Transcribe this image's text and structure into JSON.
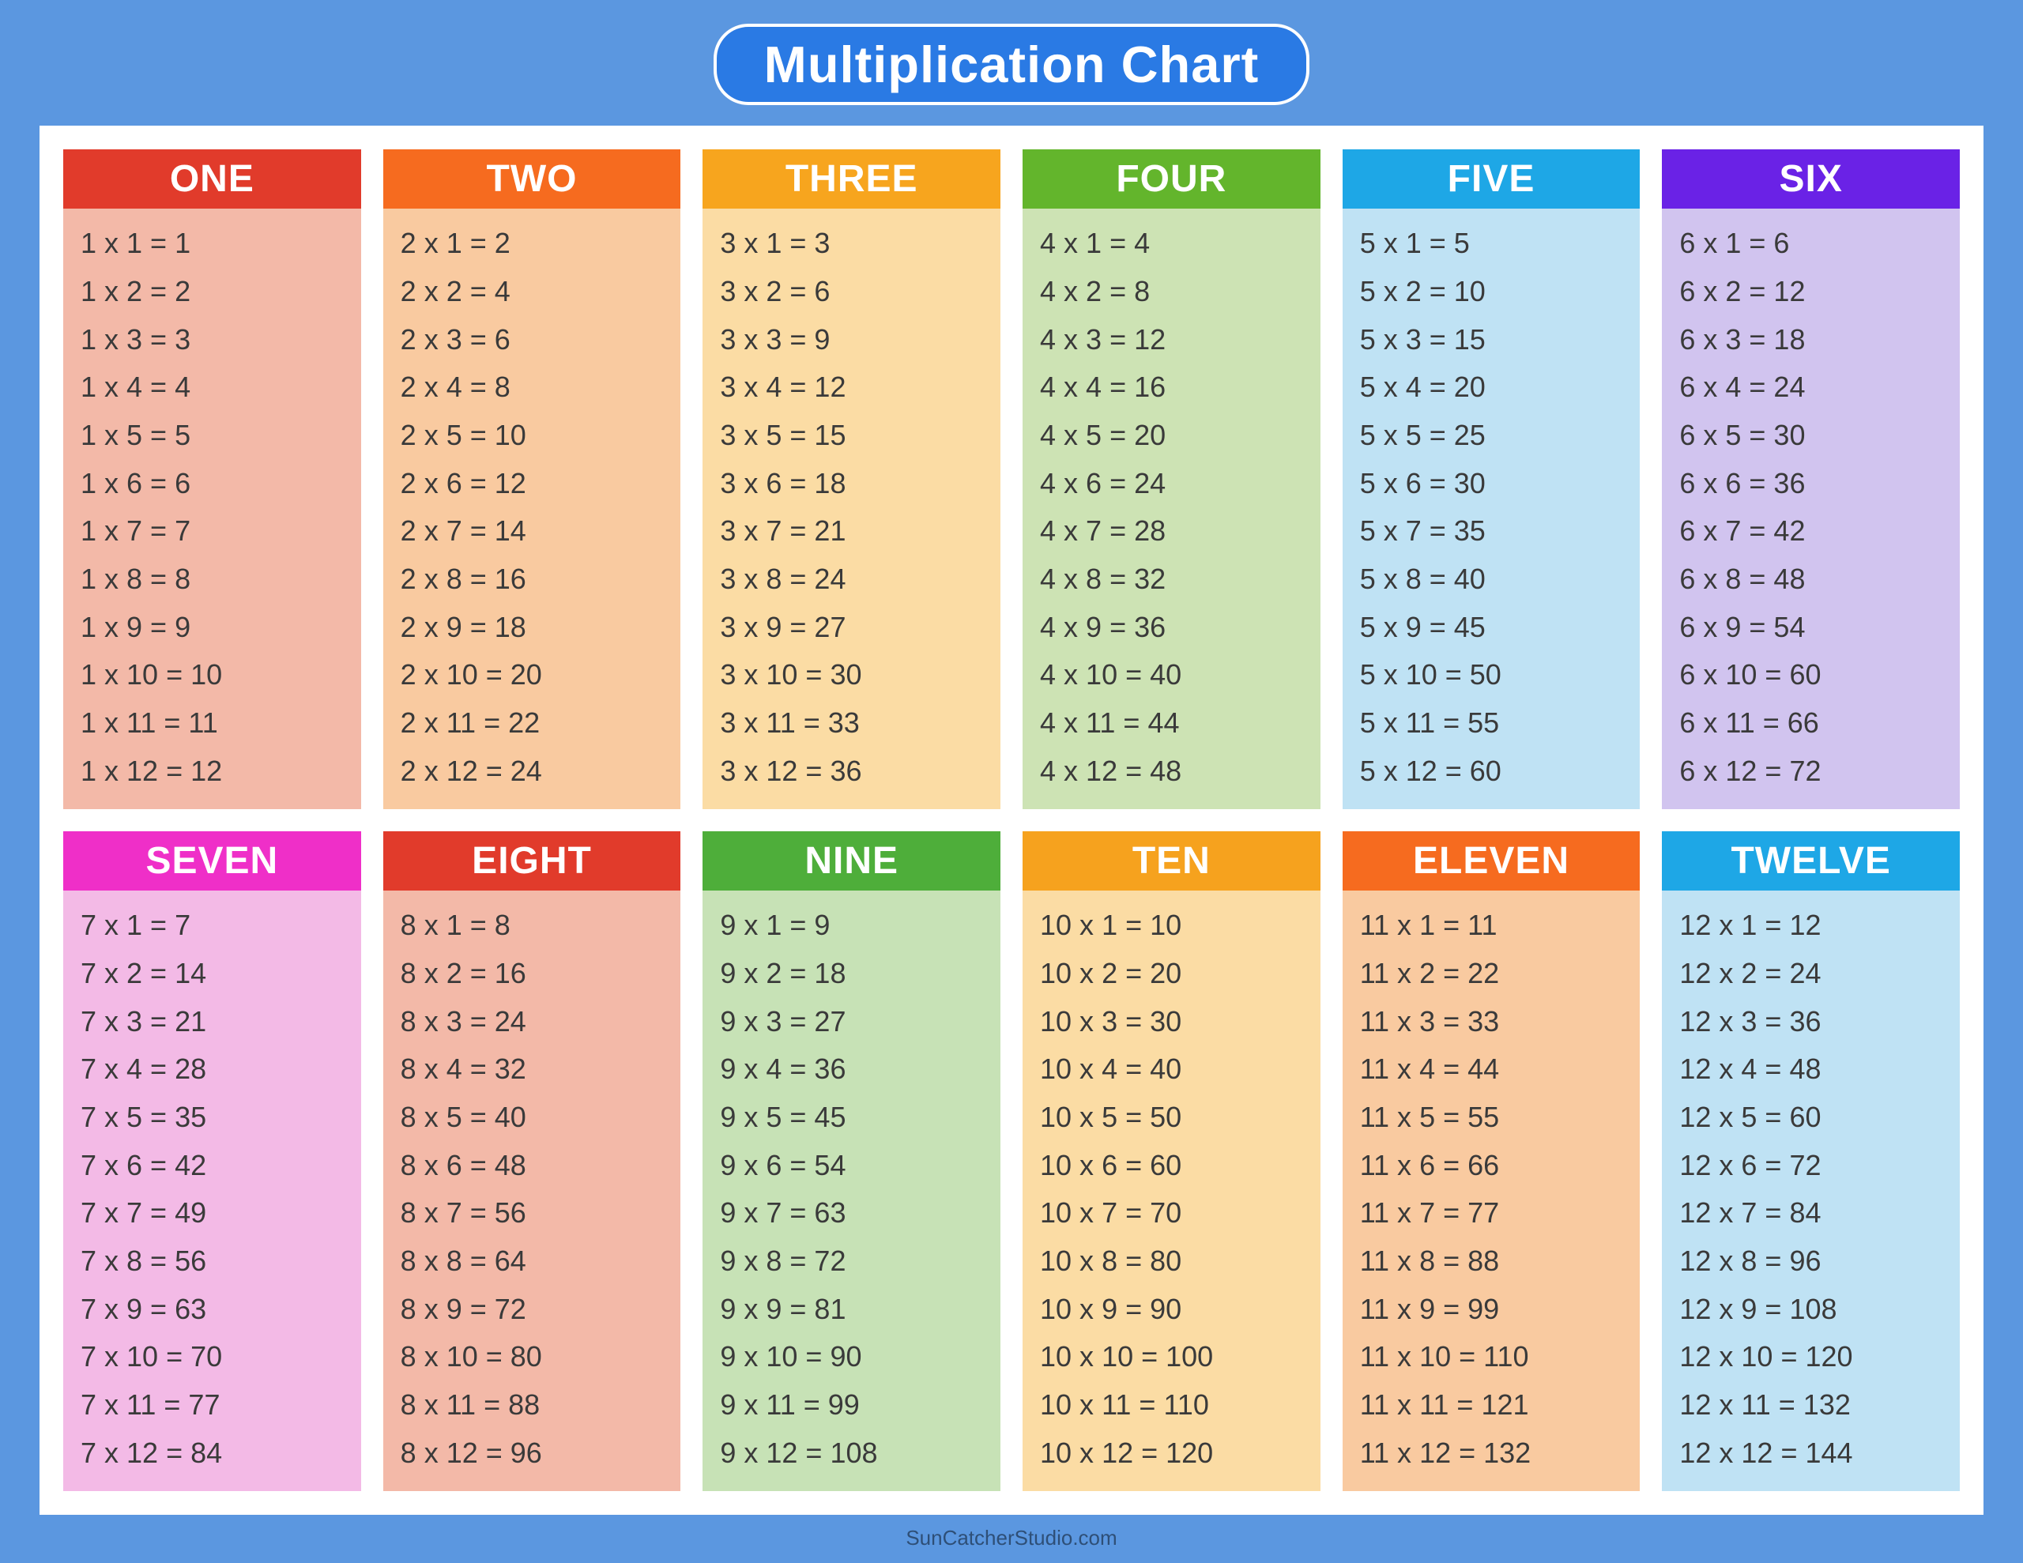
{
  "page": {
    "background_color": "#5b97e0",
    "title": "Multiplication Chart",
    "title_bg": "#2a7ae4",
    "title_color": "#ffffff",
    "card_bg": "#ffffff",
    "footer_text": "SunCatcherStudio.com",
    "footer_color": "#2e4f77",
    "layout": {
      "rows": 2,
      "cols": 6
    },
    "header_fontsize": 48,
    "equation_fontsize": 36,
    "equation_color": "#3a3a3a"
  },
  "tables": [
    {
      "n": 1,
      "label": "ONE",
      "header_bg": "#e13b2b",
      "body_bg": "#f3b9a8"
    },
    {
      "n": 2,
      "label": "TWO",
      "header_bg": "#f66b1f",
      "body_bg": "#f9caa0"
    },
    {
      "n": 3,
      "label": "THREE",
      "header_bg": "#f7a51e",
      "body_bg": "#fbdca4"
    },
    {
      "n": 4,
      "label": "FOUR",
      "header_bg": "#63b52c",
      "body_bg": "#cde3b4"
    },
    {
      "n": 5,
      "label": "FIVE",
      "header_bg": "#1ea7e6",
      "body_bg": "#bfe2f4"
    },
    {
      "n": 6,
      "label": "SIX",
      "header_bg": "#6a22e6",
      "body_bg": "#d1c4ef"
    },
    {
      "n": 7,
      "label": "SEVEN",
      "header_bg": "#ef2fc8",
      "body_bg": "#f3bae6"
    },
    {
      "n": 8,
      "label": "EIGHT",
      "header_bg": "#e13b2b",
      "body_bg": "#f3b9a8"
    },
    {
      "n": 9,
      "label": "NINE",
      "header_bg": "#4eae3a",
      "body_bg": "#c7e2b6"
    },
    {
      "n": 10,
      "label": "TEN",
      "header_bg": "#f6a21e",
      "body_bg": "#fbdca4"
    },
    {
      "n": 11,
      "label": "ELEVEN",
      "header_bg": "#f66b1f",
      "body_bg": "#f9caa0"
    },
    {
      "n": 12,
      "label": "TWELVE",
      "header_bg": "#1ea7e6",
      "body_bg": "#bfe2f4"
    }
  ],
  "multipliers": [
    1,
    2,
    3,
    4,
    5,
    6,
    7,
    8,
    9,
    10,
    11,
    12
  ]
}
